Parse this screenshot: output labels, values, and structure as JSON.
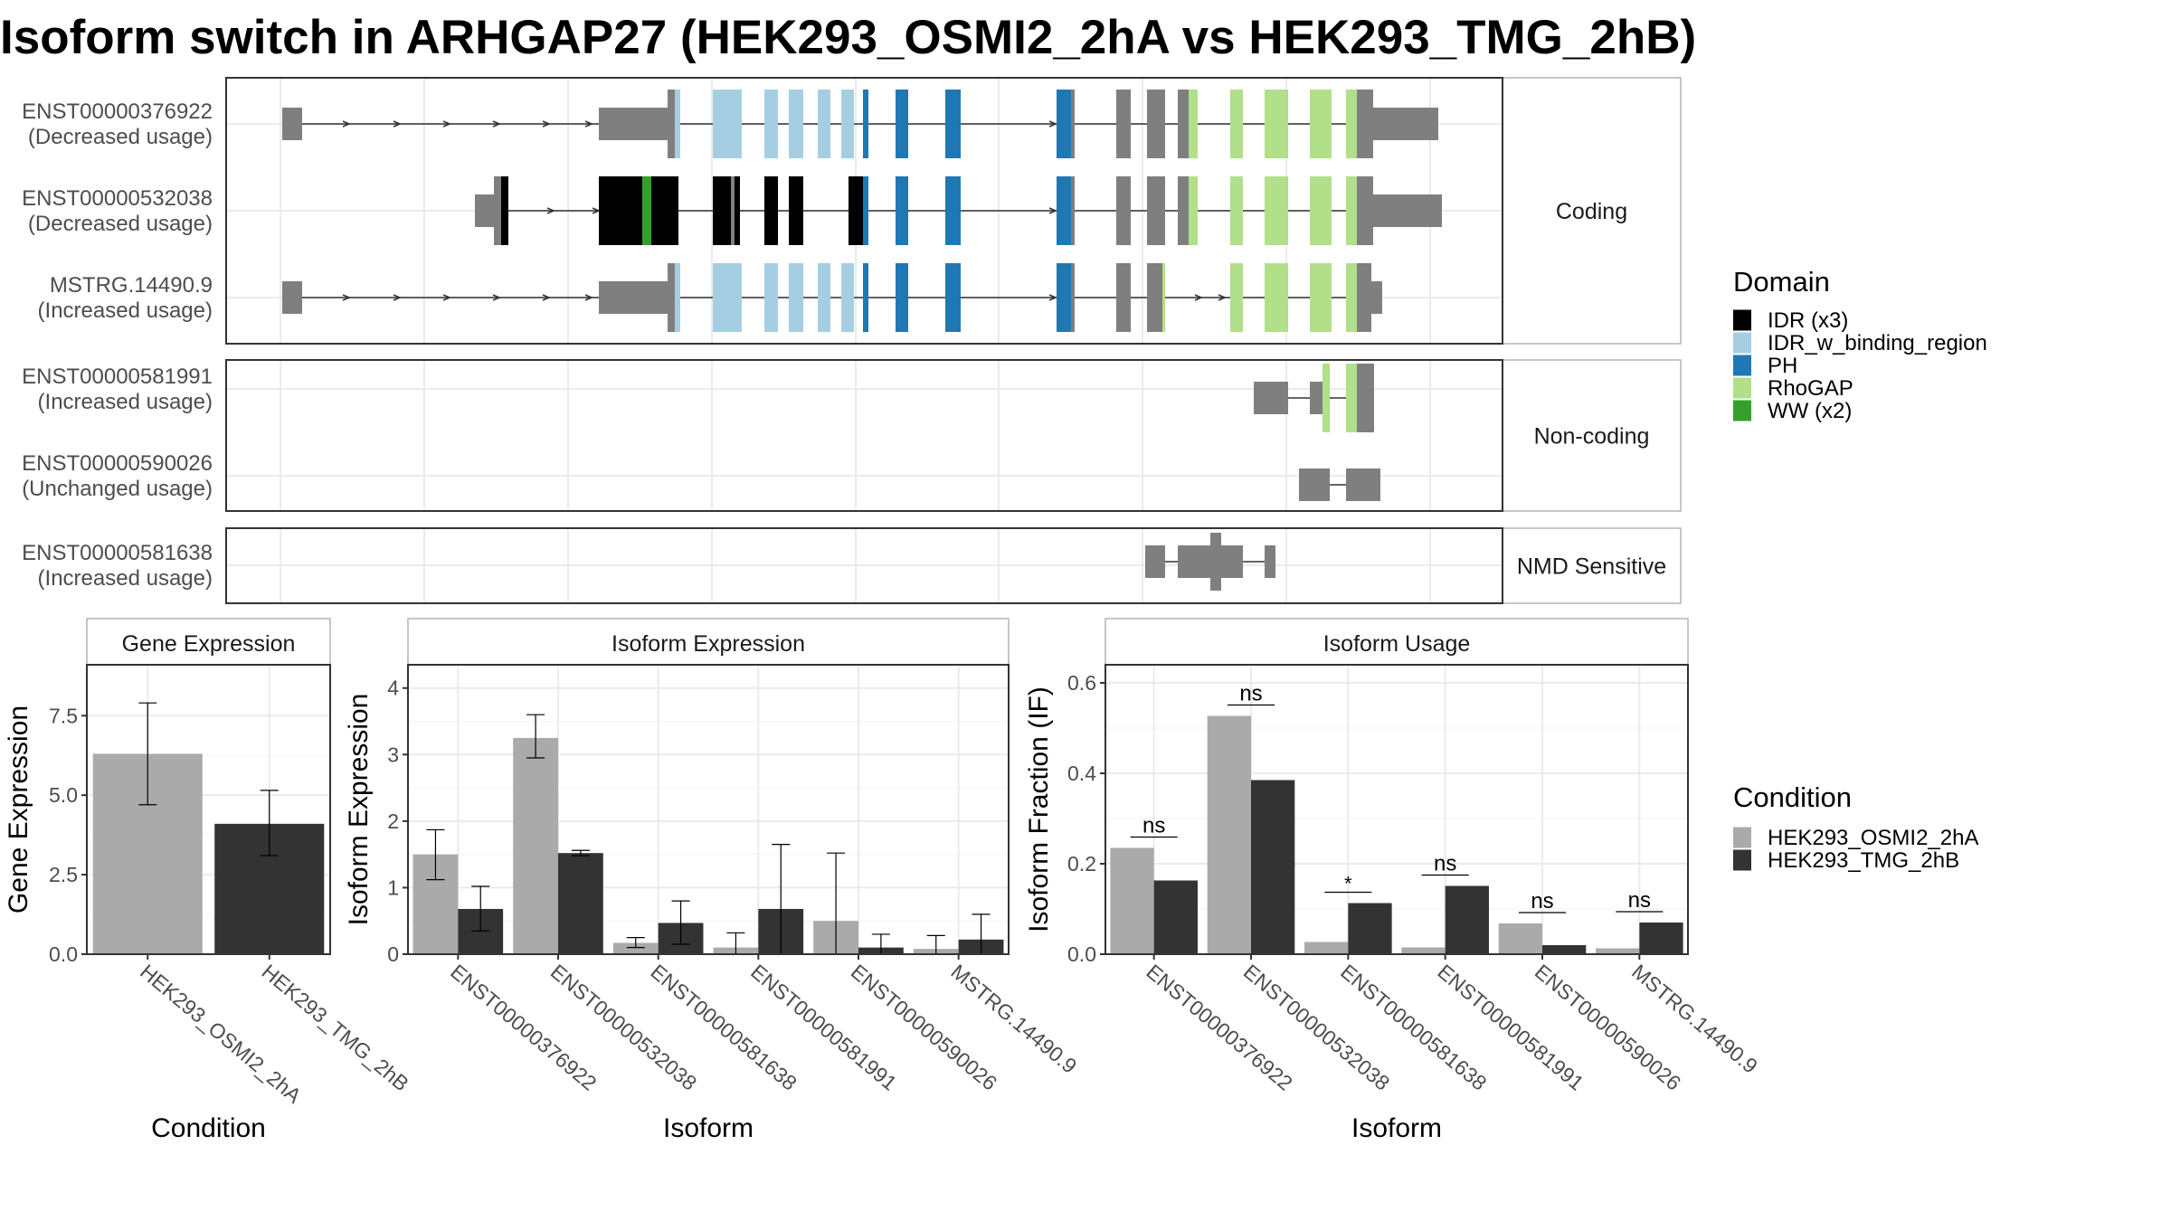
{
  "title": "Isoform switch in ARHGAP27 (HEK293_OSMI2_2hA vs HEK293_TMG_2hB)",
  "colors": {
    "exon": "#7f7f7f",
    "idr": "#000000",
    "idr_binding": "#a6cee3",
    "ph": "#1f78b4",
    "rhogap": "#b2df8a",
    "ww": "#33a02c",
    "cond_a": "#aaaaaa",
    "cond_b": "#333333"
  },
  "domain_legend": {
    "title": "Domain",
    "items": [
      {
        "label": "IDR (x3)",
        "color": "#000000"
      },
      {
        "label": "IDR_w_binding_region",
        "color": "#a6cee3"
      },
      {
        "label": "PH",
        "color": "#1f78b4"
      },
      {
        "label": "RhoGAP",
        "color": "#b2df8a"
      },
      {
        "label": "WW (x2)",
        "color": "#33a02c"
      }
    ]
  },
  "condition_legend": {
    "title": "Condition",
    "items": [
      {
        "label": "HEK293_OSMI2_2hA",
        "color": "#aaaaaa"
      },
      {
        "label": "HEK293_TMG_2hB",
        "color": "#333333"
      }
    ]
  },
  "transcript_groups": [
    {
      "label": "Coding",
      "transcripts": [
        {
          "id": "ENST00000376922",
          "usage": "(Decreased usage)"
        },
        {
          "id": "ENST00000532038",
          "usage": "(Decreased usage)"
        },
        {
          "id": "MSTRG.14490.9",
          "usage": "(Increased usage)"
        }
      ]
    },
    {
      "label": "Non-coding",
      "transcripts": [
        {
          "id": "ENST00000581991",
          "usage": "(Increased usage)"
        },
        {
          "id": "ENST00000590026",
          "usage": "(Unchanged usage)"
        }
      ]
    },
    {
      "label": "NMD Sensitive",
      "transcripts": [
        {
          "id": "ENST00000581638",
          "usage": "(Increased usage)"
        }
      ]
    }
  ],
  "chart_data": [
    {
      "type": "bar",
      "title": "Gene Expression",
      "xlabel": "Condition",
      "ylabel": "Gene Expression",
      "categories": [
        "HEK293_OSMI2_2hA",
        "HEK293_TMG_2hB"
      ],
      "values": [
        6.3,
        4.1
      ],
      "errors": [
        [
          4.7,
          7.9
        ],
        [
          3.1,
          5.15
        ]
      ],
      "ylim": [
        0,
        9.1
      ],
      "yticks": [
        0.0,
        2.5,
        5.0,
        7.5
      ],
      "yticklabels": [
        "0.0",
        "2.5",
        "5.0",
        "7.5"
      ]
    },
    {
      "type": "bar",
      "title": "Isoform Expression",
      "xlabel": "Isoform",
      "ylabel": "Isoform Expression",
      "categories": [
        "ENST00000376922",
        "ENST00000532038",
        "ENST00000581638",
        "ENST00000581991",
        "ENST00000590026",
        "MSTRG.14490.9"
      ],
      "series": [
        {
          "name": "HEK293_OSMI2_2hA",
          "values": [
            1.5,
            3.25,
            0.17,
            0.1,
            0.5,
            0.08
          ],
          "errors": [
            [
              1.12,
              1.87
            ],
            [
              2.95,
              3.6
            ],
            [
              0.1,
              0.25
            ],
            [
              0.0,
              0.32
            ],
            [
              0.0,
              1.52
            ],
            [
              0.0,
              0.28
            ]
          ]
        },
        {
          "name": "HEK293_TMG_2hB",
          "values": [
            0.68,
            1.52,
            0.47,
            0.68,
            0.1,
            0.22
          ],
          "errors": [
            [
              0.35,
              1.02
            ],
            [
              1.48,
              1.56
            ],
            [
              0.15,
              0.8
            ],
            [
              0.0,
              1.65
            ],
            [
              0.0,
              0.3
            ],
            [
              0.0,
              0.6
            ]
          ]
        }
      ],
      "ylim": [
        0,
        4.35
      ],
      "yticks": [
        0,
        1,
        2,
        3,
        4
      ],
      "yticklabels": [
        "0",
        "1",
        "2",
        "3",
        "4"
      ]
    },
    {
      "type": "bar",
      "title": "Isoform Usage",
      "xlabel": "Isoform",
      "ylabel": "Isoform Fraction (IF)",
      "categories": [
        "ENST00000376922",
        "ENST00000532038",
        "ENST00000581638",
        "ENST00000581991",
        "ENST00000590026",
        "MSTRG.14490.9"
      ],
      "series": [
        {
          "name": "HEK293_OSMI2_2hA",
          "values": [
            0.235,
            0.527,
            0.027,
            0.015,
            0.068,
            0.013
          ]
        },
        {
          "name": "HEK293_TMG_2hB",
          "values": [
            0.163,
            0.385,
            0.113,
            0.151,
            0.02,
            0.07
          ]
        }
      ],
      "significance": [
        "ns",
        "ns",
        "*",
        "ns",
        "ns",
        "ns"
      ],
      "ylim": [
        0,
        0.64
      ],
      "yticks": [
        0.0,
        0.2,
        0.4,
        0.6
      ],
      "yticklabels": [
        "0.0",
        "0.2",
        "0.4",
        "0.6"
      ]
    }
  ]
}
